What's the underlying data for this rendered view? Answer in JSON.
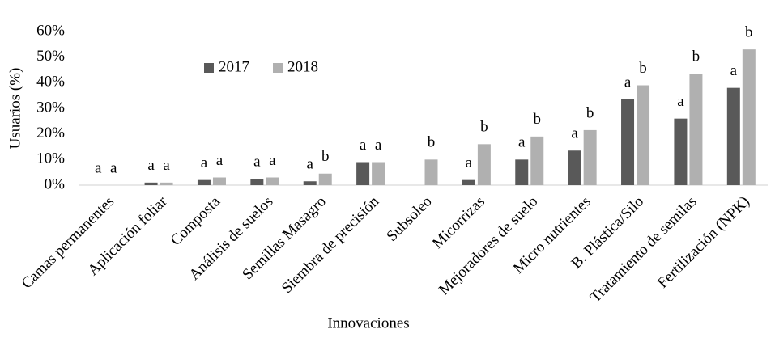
{
  "chart_data": {
    "type": "bar",
    "ylabel": "Usuarios (%)",
    "xlabel": "Innovaciones",
    "categories": [
      "Camas permanentes",
      "Aplicación foliar",
      "Composta",
      "Análisis de suelos",
      "Semillas Masagro",
      "Siembra de precisión",
      "Subsoleo",
      "Micorrizas",
      "Mejoradores de suelo",
      "Micro nutrientes",
      "B. Plástica/Silo",
      "Tratamiento de semilas",
      "Fertilización (NPK)"
    ],
    "series": [
      {
        "name": "2017",
        "color": "#595959",
        "values": [
          0,
          1,
          2,
          2.5,
          1.5,
          9,
          0,
          2,
          10,
          13.5,
          33.5,
          26,
          38
        ],
        "letters": [
          "a",
          "a",
          "a",
          "a",
          "a",
          "a",
          null,
          "a",
          "a",
          "a",
          "a",
          "a",
          "a"
        ]
      },
      {
        "name": "2018",
        "color": "#b0b0b0",
        "values": [
          0,
          1,
          3,
          3,
          4.5,
          9,
          10,
          16,
          19,
          21.5,
          39,
          43.5,
          53
        ],
        "letters": [
          "a",
          "a",
          "a",
          "a",
          "b",
          "a",
          "b",
          "b",
          "b",
          "b",
          "b",
          "b",
          "b"
        ]
      }
    ],
    "ylim": [
      0,
      60
    ],
    "yticks": [
      {
        "value": 0,
        "label": "0%"
      },
      {
        "value": 10,
        "label": "10%"
      },
      {
        "value": 20,
        "label": "20%"
      },
      {
        "value": 30,
        "label": "30%"
      },
      {
        "value": 40,
        "label": "40%"
      },
      {
        "value": 50,
        "label": "50%"
      },
      {
        "value": 60,
        "label": "60%"
      }
    ],
    "grid": false,
    "legend": "upper-left"
  }
}
